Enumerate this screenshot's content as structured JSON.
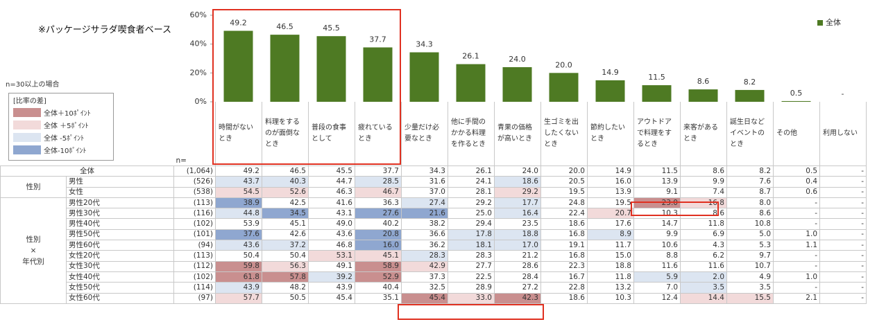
{
  "note": "※パッケージサラダ喫食者ベース",
  "n_condition": "n=30以上の場合",
  "legend_box": {
    "title": "[比率の差]",
    "items": [
      {
        "label": "全体＋10ﾎﾟｲﾝﾄ",
        "color": "#c98f8f"
      },
      {
        "label": "全体 ＋5ﾎﾟｲﾝﾄ",
        "color": "#f2dada"
      },
      {
        "label": "全体 -5ﾎﾟｲﾝﾄ",
        "color": "#dce5f1"
      },
      {
        "label": "全体-10ﾎﾟｲﾝﾄ",
        "color": "#8fa7d0"
      }
    ]
  },
  "chart_data": {
    "type": "bar",
    "categories": [
      "時間がないとき",
      "料理をするのが面倒なとき",
      "普段の食事として",
      "疲れているとき",
      "少量だけ必要なとき",
      "他に手間のかかる料理を作るとき",
      "青果の価格が高いとき",
      "生ゴミを出したくないとき",
      "節約したいとき",
      "アウトドアで料理をするとき",
      "来客があるとき",
      "誕生日などイベントのとき",
      "その他",
      "利用しない"
    ],
    "series": [
      {
        "name": "全体",
        "color": "#4e7a23",
        "values": [
          49.2,
          46.5,
          45.5,
          37.7,
          34.3,
          26.1,
          24.0,
          20.0,
          14.9,
          11.5,
          8.6,
          8.2,
          0.5,
          null
        ],
        "value_labels": [
          "49.2",
          "46.5",
          "45.5",
          "37.7",
          "34.3",
          "26.1",
          "24.0",
          "20.0",
          "14.9",
          "11.5",
          "8.6",
          "8.2",
          "0.5",
          "-"
        ]
      }
    ],
    "ylim": [
      0,
      60
    ],
    "yticks": [
      {
        "value": 0,
        "label": "0%"
      },
      {
        "value": 20,
        "label": "20%"
      },
      {
        "value": 40,
        "label": "40%"
      },
      {
        "value": 60,
        "label": "60%"
      }
    ],
    "legend": "top-right"
  },
  "table": {
    "n_header": "n=",
    "total": {
      "label": "全体",
      "n": "(1,064)",
      "values": [
        "49.2",
        "46.5",
        "45.5",
        "37.7",
        "34.3",
        "26.1",
        "24.0",
        "20.0",
        "14.9",
        "11.5",
        "8.6",
        "8.2",
        "0.5",
        "-"
      ]
    },
    "groups": [
      {
        "label": "性別",
        "rows": [
          {
            "label": "男性",
            "n": "(526)",
            "values": [
              "43.7",
              "40.3",
              "44.7",
              "28.5",
              "31.6",
              "24.1",
              "18.6",
              "20.5",
              "16.0",
              "13.9",
              "9.9",
              "7.6",
              "0.4",
              "-"
            ],
            "shade": [
              2,
              2,
              null,
              2,
              null,
              null,
              2,
              null,
              null,
              null,
              null,
              null,
              null,
              null
            ]
          },
          {
            "label": "女性",
            "n": "(538)",
            "values": [
              "54.5",
              "52.6",
              "46.3",
              "46.7",
              "37.0",
              "28.1",
              "29.2",
              "19.5",
              "13.9",
              "9.1",
              "7.4",
              "8.7",
              "0.6",
              "-"
            ],
            "shade": [
              1,
              1,
              null,
              1,
              null,
              null,
              1,
              null,
              null,
              null,
              null,
              null,
              null,
              null
            ]
          }
        ]
      },
      {
        "label": "性別\n×\n年代別",
        "rows": [
          {
            "label": "男性20代",
            "n": "(113)",
            "values": [
              "38.9",
              "42.5",
              "41.6",
              "36.3",
              "27.4",
              "29.2",
              "17.7",
              "24.8",
              "19.5",
              "23.0",
              "16.8",
              "8.0",
              "-",
              "-"
            ],
            "shade": [
              3,
              null,
              null,
              null,
              2,
              null,
              2,
              null,
              null,
              0,
              1,
              null,
              null,
              null
            ]
          },
          {
            "label": "男性30代",
            "n": "(116)",
            "values": [
              "44.8",
              "34.5",
              "43.1",
              "27.6",
              "21.6",
              "25.0",
              "16.4",
              "22.4",
              "20.7",
              "10.3",
              "8.6",
              "8.6",
              "-",
              "-"
            ],
            "shade": [
              2,
              3,
              null,
              3,
              3,
              null,
              2,
              null,
              1,
              null,
              null,
              null,
              null,
              null
            ]
          },
          {
            "label": "男性40代",
            "n": "(102)",
            "values": [
              "53.9",
              "45.1",
              "49.0",
              "40.2",
              "38.2",
              "29.4",
              "23.5",
              "18.6",
              "17.6",
              "14.7",
              "11.8",
              "10.8",
              "-",
              "-"
            ],
            "shade": [
              null,
              null,
              null,
              null,
              null,
              null,
              null,
              null,
              null,
              null,
              null,
              null,
              null,
              null
            ]
          },
          {
            "label": "男性50代",
            "n": "(101)",
            "values": [
              "37.6",
              "42.6",
              "43.6",
              "20.8",
              "36.6",
              "17.8",
              "18.8",
              "16.8",
              "8.9",
              "9.9",
              "6.9",
              "5.0",
              "1.0",
              "-"
            ],
            "shade": [
              3,
              null,
              null,
              3,
              null,
              2,
              2,
              null,
              2,
              null,
              null,
              null,
              null,
              null
            ]
          },
          {
            "label": "男性60代",
            "n": "(94)",
            "values": [
              "43.6",
              "37.2",
              "46.8",
              "16.0",
              "36.2",
              "18.1",
              "17.0",
              "19.1",
              "11.7",
              "10.6",
              "4.3",
              "5.3",
              "1.1",
              "-"
            ],
            "shade": [
              2,
              2,
              null,
              3,
              null,
              2,
              2,
              null,
              null,
              null,
              null,
              null,
              null,
              null
            ]
          },
          {
            "label": "女性20代",
            "n": "(113)",
            "values": [
              "50.4",
              "50.4",
              "53.1",
              "45.1",
              "28.3",
              "28.3",
              "21.2",
              "16.8",
              "15.0",
              "8.8",
              "6.2",
              "9.7",
              "-",
              "-"
            ],
            "shade": [
              null,
              null,
              1,
              1,
              2,
              null,
              null,
              null,
              null,
              null,
              null,
              null,
              null,
              null
            ]
          },
          {
            "label": "女性30代",
            "n": "(112)",
            "values": [
              "59.8",
              "56.3",
              "49.1",
              "58.9",
              "42.9",
              "27.7",
              "28.6",
              "22.3",
              "18.8",
              "11.6",
              "11.6",
              "10.7",
              "-",
              "-"
            ],
            "shade": [
              0,
              1,
              null,
              0,
              1,
              null,
              null,
              null,
              null,
              null,
              null,
              null,
              null,
              null
            ]
          },
          {
            "label": "女性40代",
            "n": "(102)",
            "values": [
              "61.8",
              "57.8",
              "39.2",
              "52.9",
              "37.3",
              "22.5",
              "28.4",
              "16.7",
              "11.8",
              "5.9",
              "2.0",
              "4.9",
              "1.0",
              "-"
            ],
            "shade": [
              0,
              0,
              2,
              0,
              null,
              null,
              null,
              null,
              null,
              2,
              2,
              null,
              null,
              null
            ]
          },
          {
            "label": "女性50代",
            "n": "(114)",
            "values": [
              "43.9",
              "48.2",
              "43.9",
              "40.4",
              "32.5",
              "28.9",
              "27.2",
              "22.8",
              "13.2",
              "7.0",
              "3.5",
              "3.5",
              "-",
              "-"
            ],
            "shade": [
              2,
              null,
              null,
              null,
              null,
              null,
              null,
              null,
              null,
              null,
              2,
              null,
              null,
              null
            ]
          },
          {
            "label": "女性60代",
            "n": "(97)",
            "values": [
              "57.7",
              "50.5",
              "45.4",
              "35.1",
              "45.4",
              "33.0",
              "42.3",
              "18.6",
              "10.3",
              "12.4",
              "14.4",
              "15.5",
              "2.1",
              "-"
            ],
            "shade": [
              1,
              null,
              null,
              null,
              0,
              1,
              0,
              null,
              null,
              null,
              1,
              1,
              null,
              null
            ]
          }
        ]
      }
    ]
  }
}
